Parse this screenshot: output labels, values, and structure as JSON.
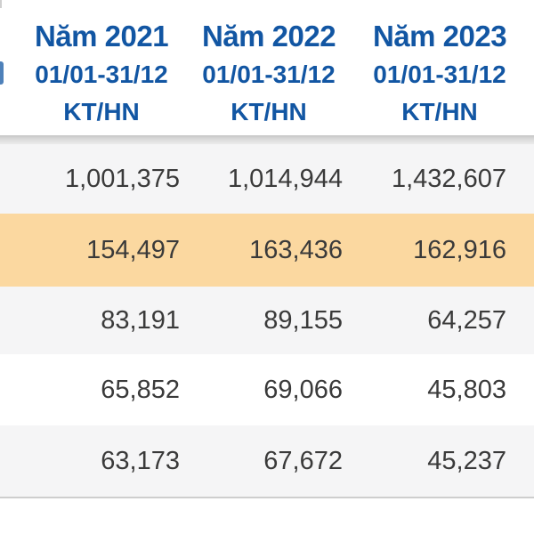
{
  "table": {
    "columns": [
      {
        "year": "Năm 2021",
        "period": "01/01-31/12",
        "unit": "KT/HN"
      },
      {
        "year": "Năm 2022",
        "period": "01/01-31/12",
        "unit": "KT/HN"
      },
      {
        "year": "Năm 2023",
        "period": "01/01-31/12",
        "unit": "KT/HN"
      }
    ],
    "rows": [
      {
        "highlight": false,
        "values": [
          "1,001,375",
          "1,014,944",
          "1,432,607"
        ]
      },
      {
        "highlight": true,
        "values": [
          "154,497",
          "163,436",
          "162,916"
        ]
      },
      {
        "highlight": false,
        "values": [
          "83,191",
          "89,155",
          "64,257"
        ]
      },
      {
        "highlight": false,
        "values": [
          "65,852",
          "69,066",
          "45,803"
        ]
      },
      {
        "highlight": false,
        "values": [
          "63,173",
          "67,672",
          "45,237"
        ]
      }
    ]
  },
  "colors": {
    "header_blue": "#1256a3",
    "highlight_orange": "#fbd8a0",
    "stripe_gray": "#f5f5f6",
    "number_text": "#3a3a3a",
    "separator_gray": "#c6c6c6"
  }
}
